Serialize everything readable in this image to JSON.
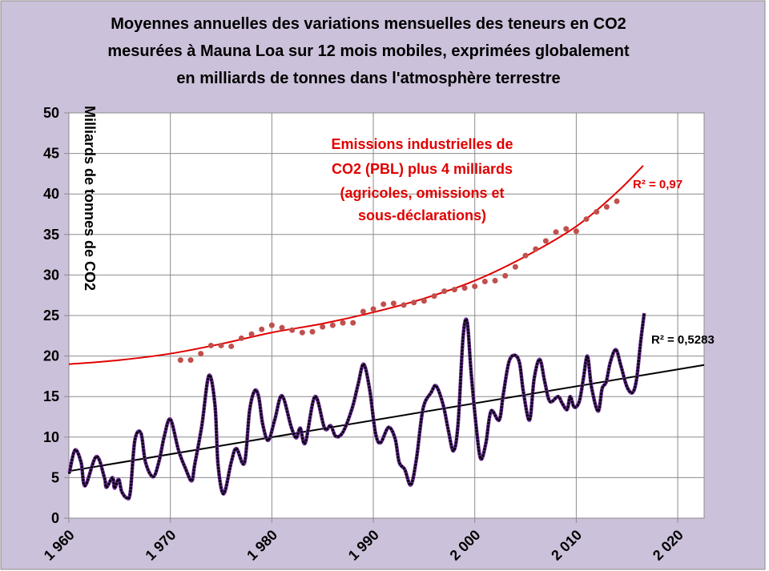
{
  "chart_data": {
    "type": "line",
    "title_lines": [
      "Moyennes annuelles des  variations  mensuelles des teneurs en CO2",
      "mesurées à Mauna Loa sur 12 mois mobiles, exprimées globalement",
      "en milliards de tonnes dans l'atmosphère terrestre"
    ],
    "ylabel": "Milliards de tonnes de CO2",
    "xlabel": "",
    "xlim": [
      1960,
      2022.6
    ],
    "ylim": [
      0,
      50
    ],
    "x_ticks": [
      1960,
      1970,
      1980,
      1990,
      2000,
      2010,
      2020
    ],
    "x_tick_labels": [
      "1 960",
      "1 970",
      "1 980",
      "1 990",
      "2 000",
      "2 010",
      "2 020"
    ],
    "y_ticks": [
      0,
      5,
      10,
      15,
      20,
      25,
      30,
      35,
      40,
      45,
      50
    ],
    "y_tick_labels": [
      "0",
      "5",
      "10",
      "15",
      "20",
      "25",
      "30",
      "35",
      "40",
      "45",
      "50"
    ],
    "grid": true,
    "colors": {
      "background": "#ccc1da",
      "plot_background": "#ffffff",
      "grid": "#8c8c8c",
      "mauna_loa_line": "#7030a0",
      "mauna_loa_markers": "#000000",
      "emissions_points": "#c0504d",
      "emissions_trend": "#e00000",
      "linear_trend": "#000000"
    },
    "series": [
      {
        "kind": "line-with-markers",
        "points": [
          [
            1960.05,
            5.6
          ],
          [
            1960.6,
            8.4
          ],
          [
            1961.2,
            6.9
          ],
          [
            1961.6,
            4.0
          ],
          [
            1962.7,
            7.6
          ],
          [
            1963.5,
            5.0
          ],
          [
            1963.7,
            3.8
          ],
          [
            1964.3,
            5.0
          ],
          [
            1964.5,
            3.7
          ],
          [
            1964.9,
            4.8
          ],
          [
            1965.2,
            3.3
          ],
          [
            1965.7,
            2.5
          ],
          [
            1966.05,
            3.2
          ],
          [
            1966.5,
            9.6
          ],
          [
            1967.1,
            10.5
          ],
          [
            1967.55,
            6.9
          ],
          [
            1968.3,
            5.1
          ],
          [
            1968.9,
            7.1
          ],
          [
            1969.4,
            10.1
          ],
          [
            1970.0,
            12.2
          ],
          [
            1970.8,
            8.4
          ],
          [
            1971.5,
            6.1
          ],
          [
            1972.1,
            4.6
          ],
          [
            1972.4,
            6.6
          ],
          [
            1973.1,
            11.4
          ],
          [
            1973.8,
            17.6
          ],
          [
            1974.4,
            13.9
          ],
          [
            1974.7,
            6.6
          ],
          [
            1975.25,
            3.0
          ],
          [
            1976.0,
            6.9
          ],
          [
            1976.5,
            8.6
          ],
          [
            1977.3,
            6.8
          ],
          [
            1977.8,
            13.2
          ],
          [
            1978.3,
            15.7
          ],
          [
            1978.7,
            15.0
          ],
          [
            1979.1,
            11.6
          ],
          [
            1979.65,
            9.6
          ],
          [
            1980.3,
            12.2
          ],
          [
            1981.0,
            15.1
          ],
          [
            1981.9,
            11.3
          ],
          [
            1982.4,
            9.9
          ],
          [
            1982.8,
            11.1
          ],
          [
            1983.3,
            9.3
          ],
          [
            1984.25,
            15.0
          ],
          [
            1985.2,
            11.1
          ],
          [
            1985.8,
            11.4
          ],
          [
            1986.3,
            10.1
          ],
          [
            1987.0,
            10.6
          ],
          [
            1987.9,
            13.5
          ],
          [
            1988.5,
            16.5
          ],
          [
            1989.05,
            19.0
          ],
          [
            1989.65,
            15.8
          ],
          [
            1990.2,
            10.6
          ],
          [
            1990.7,
            9.3
          ],
          [
            1991.5,
            11.2
          ],
          [
            1992.15,
            9.8
          ],
          [
            1992.55,
            6.9
          ],
          [
            1993.1,
            6.0
          ],
          [
            1993.7,
            4.1
          ],
          [
            1994.25,
            7.3
          ],
          [
            1994.9,
            13.5
          ],
          [
            1995.7,
            15.5
          ],
          [
            1996.2,
            16.3
          ],
          [
            1996.9,
            13.9
          ],
          [
            1997.4,
            10.8
          ],
          [
            1997.9,
            8.3
          ],
          [
            1998.35,
            11.6
          ],
          [
            1998.85,
            22.4
          ],
          [
            1999.25,
            24.2
          ],
          [
            1999.65,
            17.8
          ],
          [
            2000.2,
            10.6
          ],
          [
            2000.6,
            7.3
          ],
          [
            2001.1,
            9.3
          ],
          [
            2001.6,
            13.2
          ],
          [
            2002.4,
            12.1
          ],
          [
            2002.8,
            15.2
          ],
          [
            2003.35,
            19.2
          ],
          [
            2003.9,
            20.1
          ],
          [
            2004.4,
            19.2
          ],
          [
            2004.8,
            15.5
          ],
          [
            2005.4,
            12.1
          ],
          [
            2005.85,
            17.2
          ],
          [
            2006.4,
            19.6
          ],
          [
            2006.9,
            16.8
          ],
          [
            2007.4,
            14.4
          ],
          [
            2008.2,
            15.0
          ],
          [
            2008.6,
            14.2
          ],
          [
            2009.1,
            13.4
          ],
          [
            2009.4,
            15.0
          ],
          [
            2009.8,
            13.7
          ],
          [
            2010.3,
            14.4
          ],
          [
            2010.7,
            17.2
          ],
          [
            2011.1,
            20.0
          ],
          [
            2011.5,
            16.2
          ],
          [
            2012.15,
            13.2
          ],
          [
            2012.55,
            16.0
          ],
          [
            2012.95,
            16.8
          ],
          [
            2013.35,
            19.2
          ],
          [
            2013.9,
            20.8
          ],
          [
            2014.4,
            18.8
          ],
          [
            2015.0,
            16.2
          ],
          [
            2015.55,
            15.5
          ],
          [
            2015.95,
            17.2
          ],
          [
            2016.35,
            21.8
          ],
          [
            2016.7,
            25.3
          ]
        ]
      },
      {
        "kind": "linear-trend",
        "points": [
          [
            1960,
            5.8
          ],
          [
            2022.6,
            18.9
          ]
        ],
        "r2_label": "R² = 0,5283"
      },
      {
        "kind": "scatter",
        "x": [
          1971,
          1972,
          1973,
          1974,
          1975,
          1976,
          1977,
          1978,
          1979,
          1980,
          1981,
          1982,
          1983,
          1984,
          1985,
          1986,
          1987,
          1988,
          1989,
          1990,
          1991,
          1992,
          1993,
          1994,
          1995,
          1996,
          1997,
          1998,
          1999,
          2000,
          2001,
          2002,
          2003,
          2004,
          2005,
          2006,
          2007,
          2008,
          2009,
          2010,
          2011,
          2012,
          2013,
          2014
        ],
        "values": [
          19.5,
          19.5,
          20.3,
          21.3,
          21.3,
          21.2,
          22.2,
          22.7,
          23.3,
          23.8,
          23.5,
          23.2,
          22.9,
          23.0,
          23.6,
          23.8,
          24.1,
          24.1,
          25.5,
          25.8,
          26.4,
          26.5,
          26.3,
          26.6,
          26.8,
          27.4,
          28.0,
          28.2,
          28.4,
          28.6,
          29.2,
          29.3,
          29.9,
          31.0,
          32.4,
          33.2,
          34.2,
          35.3,
          35.7,
          35.4,
          36.9,
          37.8,
          38.4,
          39.1
        ]
      },
      {
        "kind": "curved-trend",
        "points": [
          [
            1960,
            19.0
          ],
          [
            1965,
            19.5
          ],
          [
            1970,
            20.3
          ],
          [
            1975,
            21.5
          ],
          [
            1980,
            22.9
          ],
          [
            1985,
            24.0
          ],
          [
            1990,
            25.4
          ],
          [
            1995,
            27.1
          ],
          [
            2000,
            29.3
          ],
          [
            2005,
            32.3
          ],
          [
            2010,
            36.0
          ],
          [
            2014,
            40.2
          ],
          [
            2016.6,
            43.5
          ]
        ],
        "r2_label": "R² = 0,97"
      }
    ],
    "annotations": [
      "Emissions industrielles de",
      "CO2 (PBL) plus 4 milliards",
      "(agricoles, omissions et",
      "sous-déclarations)"
    ]
  }
}
